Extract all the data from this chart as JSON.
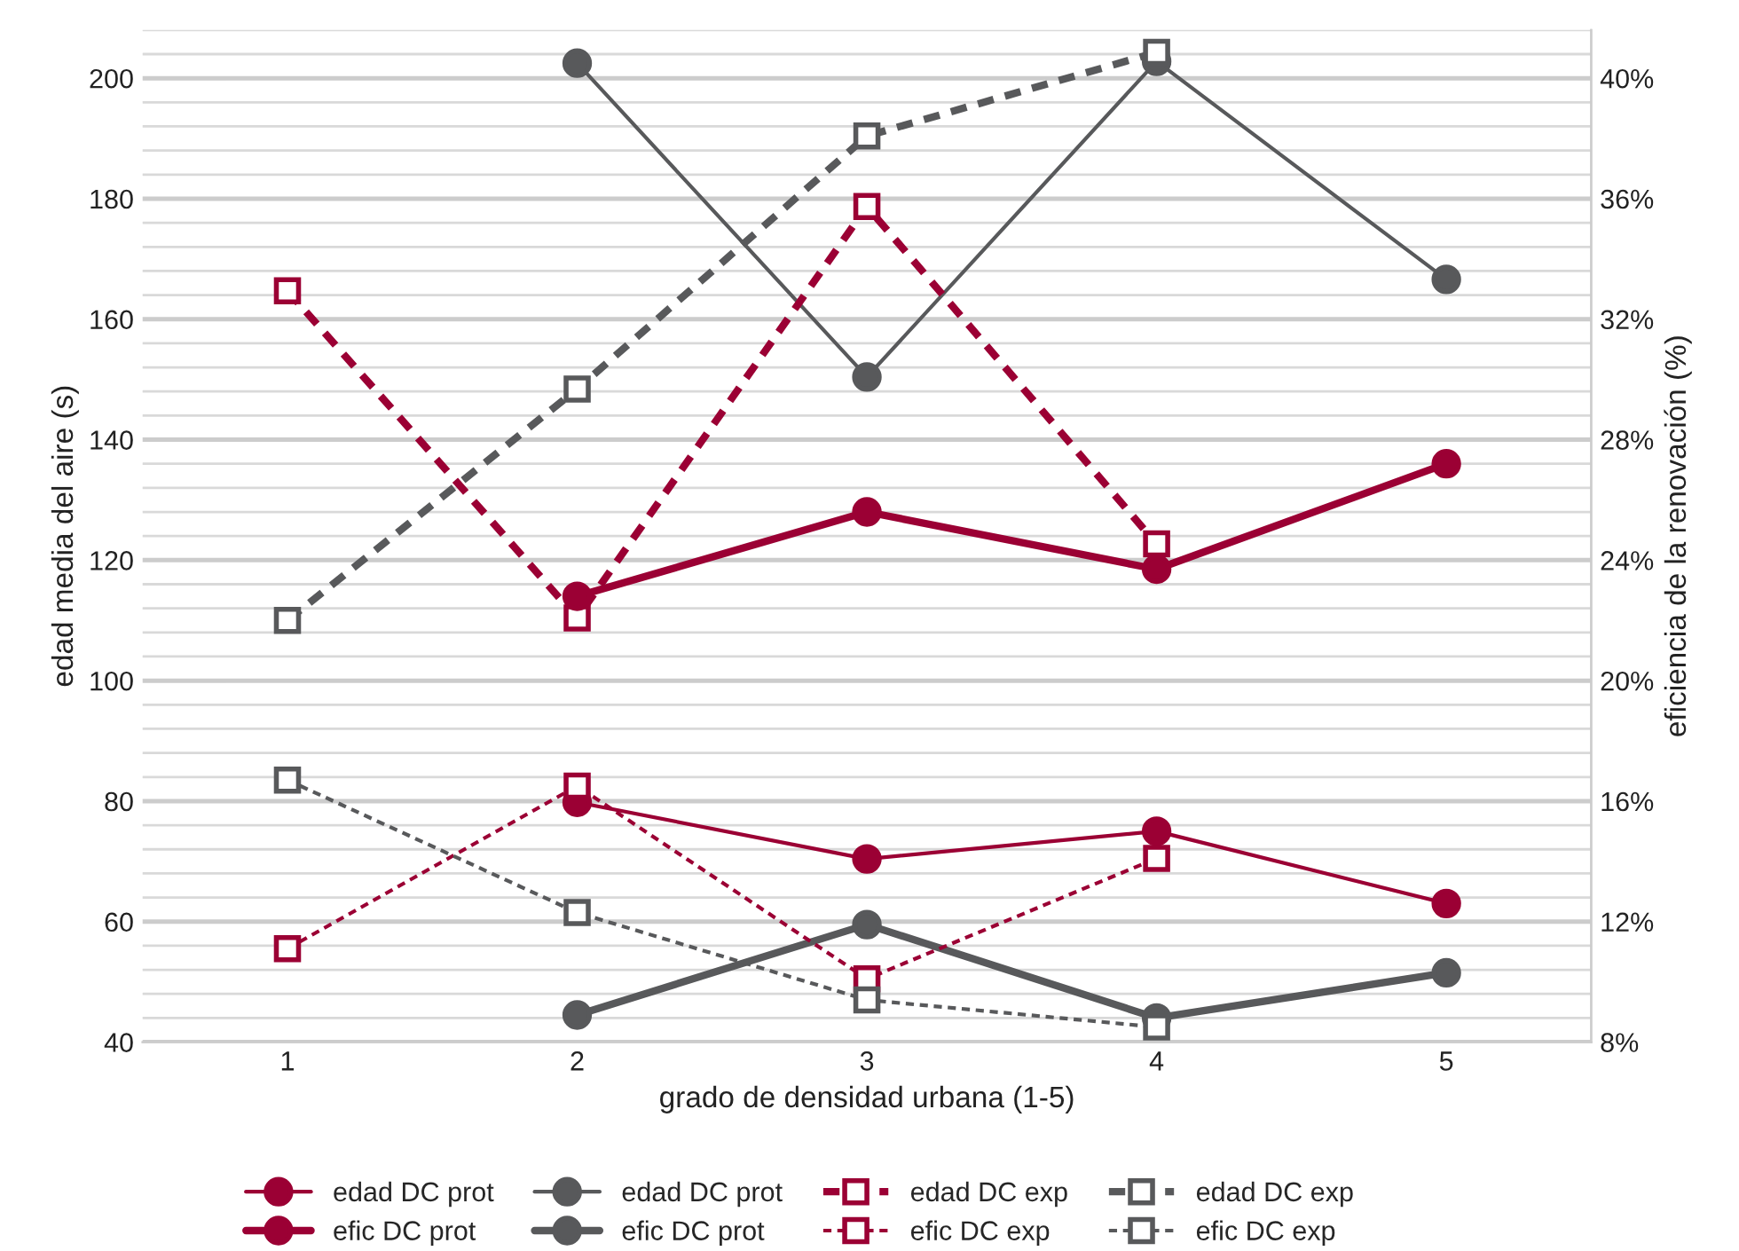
{
  "chart_data": {
    "type": "line",
    "xlabel": "grado de densidad urbana (1-5)",
    "ylabel": "edad media del aire (s)",
    "y2label": "eficiencia de la renovación (%)",
    "categories": [
      "1",
      "2",
      "3",
      "4",
      "5"
    ],
    "ylim": [
      40,
      208
    ],
    "yticks": [
      40,
      60,
      80,
      100,
      120,
      140,
      160,
      180,
      200
    ],
    "y2lim": [
      8,
      41.6
    ],
    "y2ticks": [
      {
        "value": 8,
        "label": "8%"
      },
      {
        "value": 12,
        "label": "12%"
      },
      {
        "value": 16,
        "label": "16%"
      },
      {
        "value": 20,
        "label": "20%"
      },
      {
        "value": 24,
        "label": "24%"
      },
      {
        "value": 28,
        "label": "28%"
      },
      {
        "value": 32,
        "label": "32%"
      },
      {
        "value": 36,
        "label": "36%"
      },
      {
        "value": 40,
        "label": "40%"
      }
    ],
    "grid": "y",
    "legend": "bottom",
    "series": [
      {
        "name": "edad DC prot",
        "color": "#9b0034",
        "marker": "circle",
        "line_style": "solid",
        "axis": "y",
        "values": [
          null,
          79.8,
          70.4,
          75.0,
          63.0
        ]
      },
      {
        "name": "edad DC prot",
        "color": "#58595b",
        "marker": "circle",
        "line_style": "solid",
        "axis": "y",
        "values": [
          null,
          202.5,
          150.4,
          202.8,
          166.6
        ]
      },
      {
        "name": "edad DC exp",
        "color": "#9b0034",
        "marker": "square",
        "line_style": "dashed",
        "axis": "y",
        "values": [
          164.7,
          110.4,
          178.7,
          122.7,
          null
        ]
      },
      {
        "name": "edad DC exp",
        "color": "#58595b",
        "marker": "square",
        "line_style": "dashed",
        "axis": "y",
        "values": [
          110.0,
          148.4,
          190.4,
          204.3,
          null
        ]
      },
      {
        "name": "efic DC prot",
        "color": "#9b0034",
        "marker": "circle",
        "line_style": "solid",
        "axis": "y2",
        "values": [
          null,
          22.8,
          25.6,
          23.7,
          27.2
        ]
      },
      {
        "name": "efic DC prot",
        "color": "#58595b",
        "marker": "circle",
        "line_style": "solid",
        "axis": "y2",
        "values": [
          null,
          8.9,
          11.9,
          8.8,
          10.3
        ]
      },
      {
        "name": "efic DC exp",
        "color": "#9b0034",
        "marker": "square",
        "line_style": "dashed",
        "axis": "y2",
        "values": [
          11.1,
          16.5,
          10.1,
          14.1,
          null
        ]
      },
      {
        "name": "efic DC exp",
        "color": "#58595b",
        "marker": "square",
        "line_style": "dashed",
        "axis": "y2",
        "values": [
          16.7,
          12.3,
          9.4,
          8.5,
          null
        ]
      }
    ]
  }
}
